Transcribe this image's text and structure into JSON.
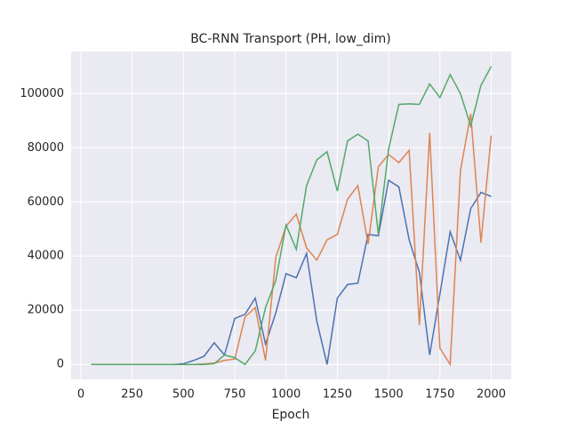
{
  "chart_data": {
    "type": "line",
    "title": "BC-RNN Transport (PH, low_dim)",
    "x_label": "Epoch",
    "x": [
      50,
      100,
      150,
      200,
      250,
      300,
      350,
      400,
      450,
      500,
      550,
      600,
      650,
      700,
      750,
      800,
      850,
      900,
      950,
      1000,
      1050,
      1100,
      1150,
      1200,
      1250,
      1300,
      1350,
      1400,
      1450,
      1500,
      1550,
      1600,
      1650,
      1700,
      1750,
      1800,
      1850,
      1900,
      1950,
      2000
    ],
    "series": [
      {
        "color": "#4c72b0",
        "values": [
          0,
          0,
          0,
          0,
          0,
          0,
          0,
          0,
          0,
          300,
          1500,
          3000,
          8000,
          3500,
          17000,
          18500,
          24500,
          7500,
          19000,
          33500,
          32000,
          41000,
          16000,
          0,
          24500,
          29500,
          30000,
          48000,
          47500,
          68000,
          65500,
          46000,
          34000,
          3500,
          26000,
          49000,
          38500,
          57500,
          63500,
          62000
        ]
      },
      {
        "color": "#dd8452",
        "values": [
          0,
          0,
          0,
          0,
          0,
          0,
          0,
          0,
          0,
          0,
          0,
          200,
          500,
          1500,
          2000,
          17500,
          21000,
          1500,
          39500,
          51000,
          55500,
          43000,
          38500,
          46000,
          48000,
          61000,
          66000,
          44500,
          73000,
          77500,
          74500,
          79000,
          14500,
          85500,
          6000,
          0,
          71500,
          92500,
          45000,
          84500
        ]
      },
      {
        "color": "#55a868",
        "values": [
          0,
          0,
          0,
          0,
          0,
          0,
          0,
          0,
          0,
          0,
          0,
          0,
          300,
          3500,
          2500,
          0,
          5000,
          21000,
          31000,
          51500,
          42500,
          66000,
          75500,
          78500,
          64000,
          82500,
          85000,
          82500,
          48000,
          79500,
          96000,
          96200,
          96000,
          103500,
          98500,
          107000,
          100000,
          88000,
          103000,
          110000
        ]
      }
    ],
    "xlim": [
      -47.5,
      2097.5
    ],
    "xticks": [
      0,
      250,
      500,
      750,
      1000,
      1250,
      1500,
      1750,
      2000
    ],
    "ylim": [
      -5500,
      115500
    ],
    "yticks": [
      0,
      20000,
      40000,
      60000,
      80000,
      100000
    ],
    "grid": true
  }
}
